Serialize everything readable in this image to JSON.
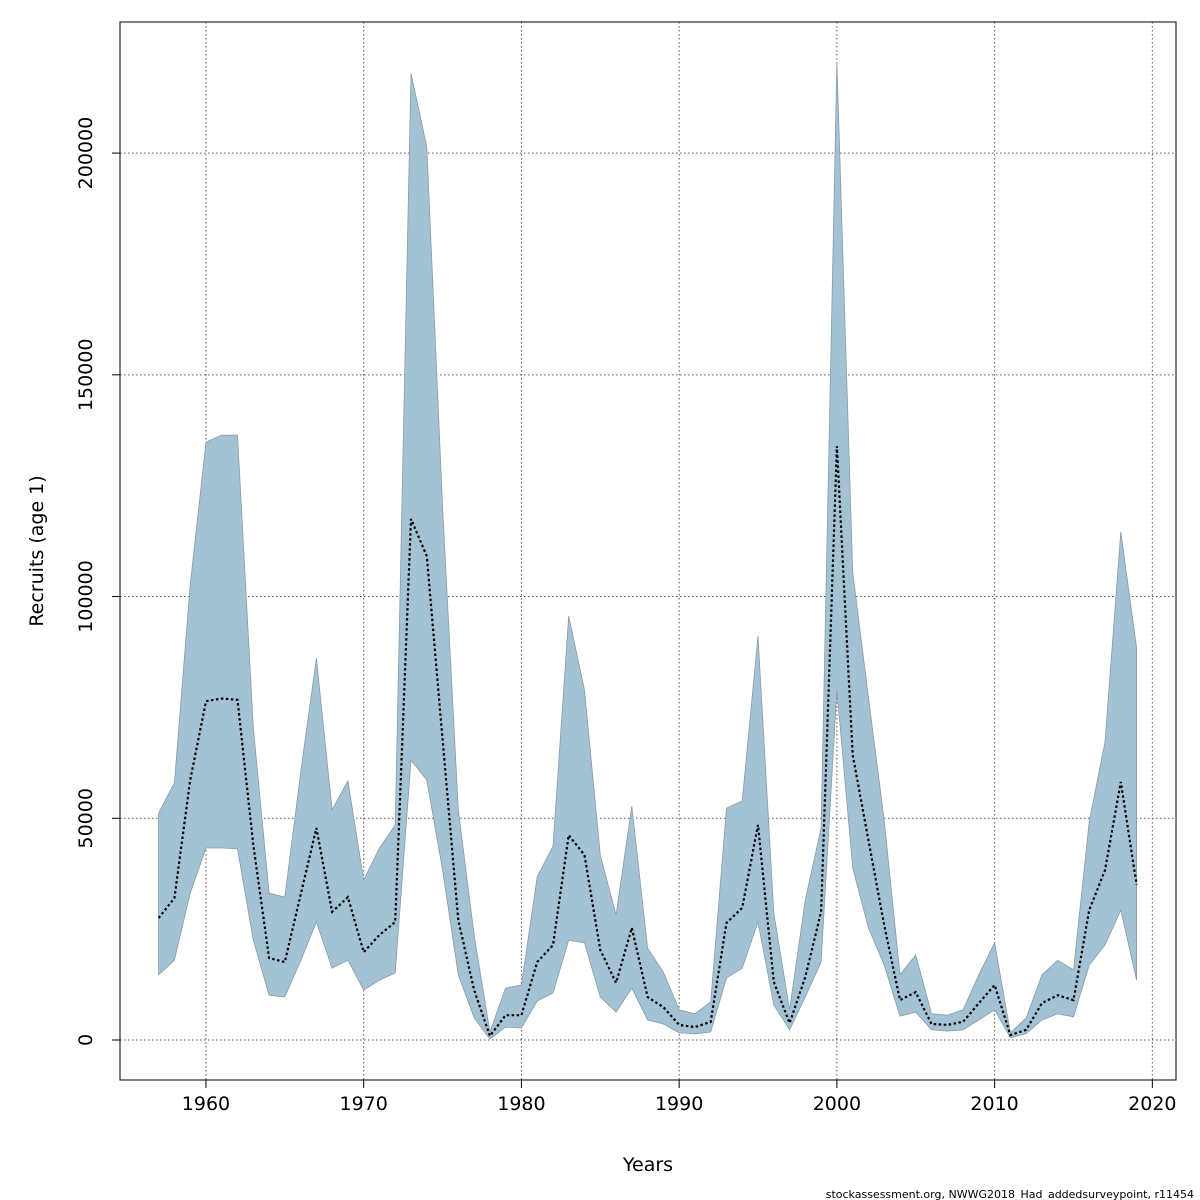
{
  "chart_data": {
    "type": "area",
    "title": "",
    "xlabel": "Years",
    "ylabel": "Recruits (age 1)",
    "xlim": [
      1954.55,
      2021.5
    ],
    "ylim": [
      -9020,
      229560
    ],
    "xticks": [
      1960,
      1970,
      1980,
      1990,
      2000,
      2010,
      2020
    ],
    "yticks": [
      0,
      50000,
      100000,
      150000,
      200000
    ],
    "grid": true,
    "x": [
      1957,
      1958,
      1959,
      1960,
      1961,
      1962,
      1963,
      1964,
      1965,
      1966,
      1967,
      1968,
      1969,
      1970,
      1971,
      1972,
      1973,
      1974,
      1975,
      1976,
      1977,
      1978,
      1979,
      1980,
      1981,
      1982,
      1983,
      1984,
      1985,
      1986,
      1987,
      1988,
      1989,
      1990,
      1991,
      1992,
      1993,
      1994,
      1995,
      1996,
      1997,
      1998,
      1999,
      2000,
      2001,
      2002,
      2003,
      2004,
      2005,
      2006,
      2007,
      2008,
      2009,
      2010,
      2011,
      2012,
      2013,
      2014,
      2015,
      2016,
      2017,
      2018,
      2019
    ],
    "series": [
      {
        "name": "estimate",
        "style": "dotted",
        "color": "#000000",
        "values": [
          27500,
          32000,
          58600,
          76400,
          77000,
          76700,
          44000,
          18500,
          17600,
          32700,
          47800,
          28900,
          32200,
          19800,
          23700,
          26600,
          117500,
          109100,
          67700,
          27000,
          11300,
          900,
          5600,
          5600,
          17600,
          21400,
          46200,
          41700,
          20300,
          12900,
          25300,
          9700,
          7400,
          3400,
          2900,
          4100,
          26400,
          29800,
          48500,
          13100,
          3800,
          14200,
          28900,
          133900,
          64300,
          45100,
          25900,
          9000,
          10800,
          3600,
          3400,
          4100,
          8300,
          12400,
          1100,
          2300,
          8300,
          10100,
          9000,
          29300,
          38300,
          58200,
          35000
        ]
      },
      {
        "name": "upper",
        "color": "#a3c3d5",
        "values": [
          51200,
          58000,
          102600,
          134800,
          136400,
          136400,
          70400,
          33100,
          32200,
          60200,
          86100,
          51900,
          58400,
          36100,
          43300,
          48500,
          218000,
          201400,
          120000,
          51900,
          23700,
          1800,
          11700,
          12400,
          36800,
          43700,
          95600,
          78900,
          41700,
          28200,
          52800,
          20700,
          15300,
          6800,
          5900,
          8600,
          52300,
          53900,
          91100,
          28600,
          6800,
          31600,
          47800,
          220500,
          105500,
          77300,
          49600,
          14700,
          19200,
          5900,
          5600,
          6800,
          14700,
          21900,
          1600,
          5000,
          14700,
          18000,
          15800,
          49200,
          67200,
          114600,
          88400
        ]
      },
      {
        "name": "lower",
        "color": "#a3c3d5",
        "values": [
          14700,
          18000,
          33100,
          43300,
          43300,
          43100,
          22500,
          10100,
          9700,
          17800,
          26600,
          16200,
          18000,
          11300,
          13500,
          15100,
          63100,
          58600,
          38300,
          14700,
          5000,
          200,
          2900,
          2700,
          8800,
          10600,
          22500,
          21900,
          9700,
          6300,
          11700,
          4500,
          3600,
          1600,
          1400,
          1800,
          14000,
          16200,
          26600,
          7900,
          2300,
          9700,
          17600,
          78900,
          38800,
          25300,
          16900,
          5400,
          6300,
          2300,
          2000,
          2300,
          4500,
          6800,
          500,
          1400,
          4500,
          5900,
          5200,
          16900,
          21400,
          29300,
          13500
        ]
      }
    ]
  },
  "footer": "stockassessment.org, NWWG2018_Had_addedsurveypoint, r11454"
}
